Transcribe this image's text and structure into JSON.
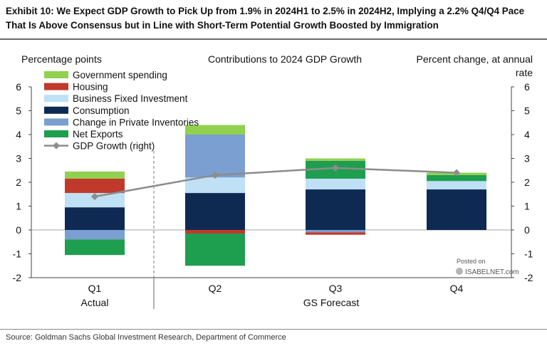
{
  "header": {
    "title": "Exhibit 10: We Expect GDP Growth to Pick Up from 1.9% in 2024H1 to 2.5% in 2024H2, Implying a 2.2% Q4/Q4 Pace That Is Above Consensus but in Line with Short-Term Potential Growth Boosted by Immigration",
    "source": "Source: Goldman Sachs Global Investment Research, Department of Commerce"
  },
  "watermark": {
    "line1": "Posted on",
    "line2": "ISABELNET.com"
  },
  "chart_data": {
    "type": "bar",
    "stacked": true,
    "title": "Contributions to 2024 GDP Growth",
    "ylabel_left": "Percentage points",
    "ylabel_right": "Percent change, at annual rate",
    "ylim": [
      -2,
      6
    ],
    "yticks": [
      -2,
      -1,
      0,
      1,
      2,
      3,
      4,
      5,
      6
    ],
    "categories": [
      "Q1",
      "Q2",
      "Q3",
      "Q4"
    ],
    "group_labels": [
      "Actual",
      "GS Forecast"
    ],
    "grid": false,
    "legend_position": "top-left",
    "series": [
      {
        "name": "Government spending",
        "color": "#92d050",
        "values": [
          0.3,
          0.4,
          0.1,
          0.1
        ]
      },
      {
        "name": "Housing",
        "color": "#c0392b",
        "values": [
          0.6,
          -0.15,
          -0.1,
          0.0
        ]
      },
      {
        "name": "Business Fixed Investment",
        "color": "#bfe0f5",
        "values": [
          0.6,
          0.65,
          0.45,
          0.35
        ]
      },
      {
        "name": "Consumption",
        "color": "#0e2a52",
        "values": [
          0.95,
          1.55,
          1.7,
          1.7
        ]
      },
      {
        "name": "Change in Private Inventories",
        "color": "#7b9fd0",
        "values": [
          -0.4,
          1.8,
          -0.1,
          0.0
        ]
      },
      {
        "name": "Net Exports",
        "color": "#1e9e4f",
        "values": [
          -0.65,
          -1.35,
          0.75,
          0.25
        ]
      }
    ],
    "line_series": {
      "name": "GDP Growth (right)",
      "color": "#8c8c8c",
      "values": [
        1.4,
        2.3,
        2.6,
        2.4
      ]
    }
  }
}
